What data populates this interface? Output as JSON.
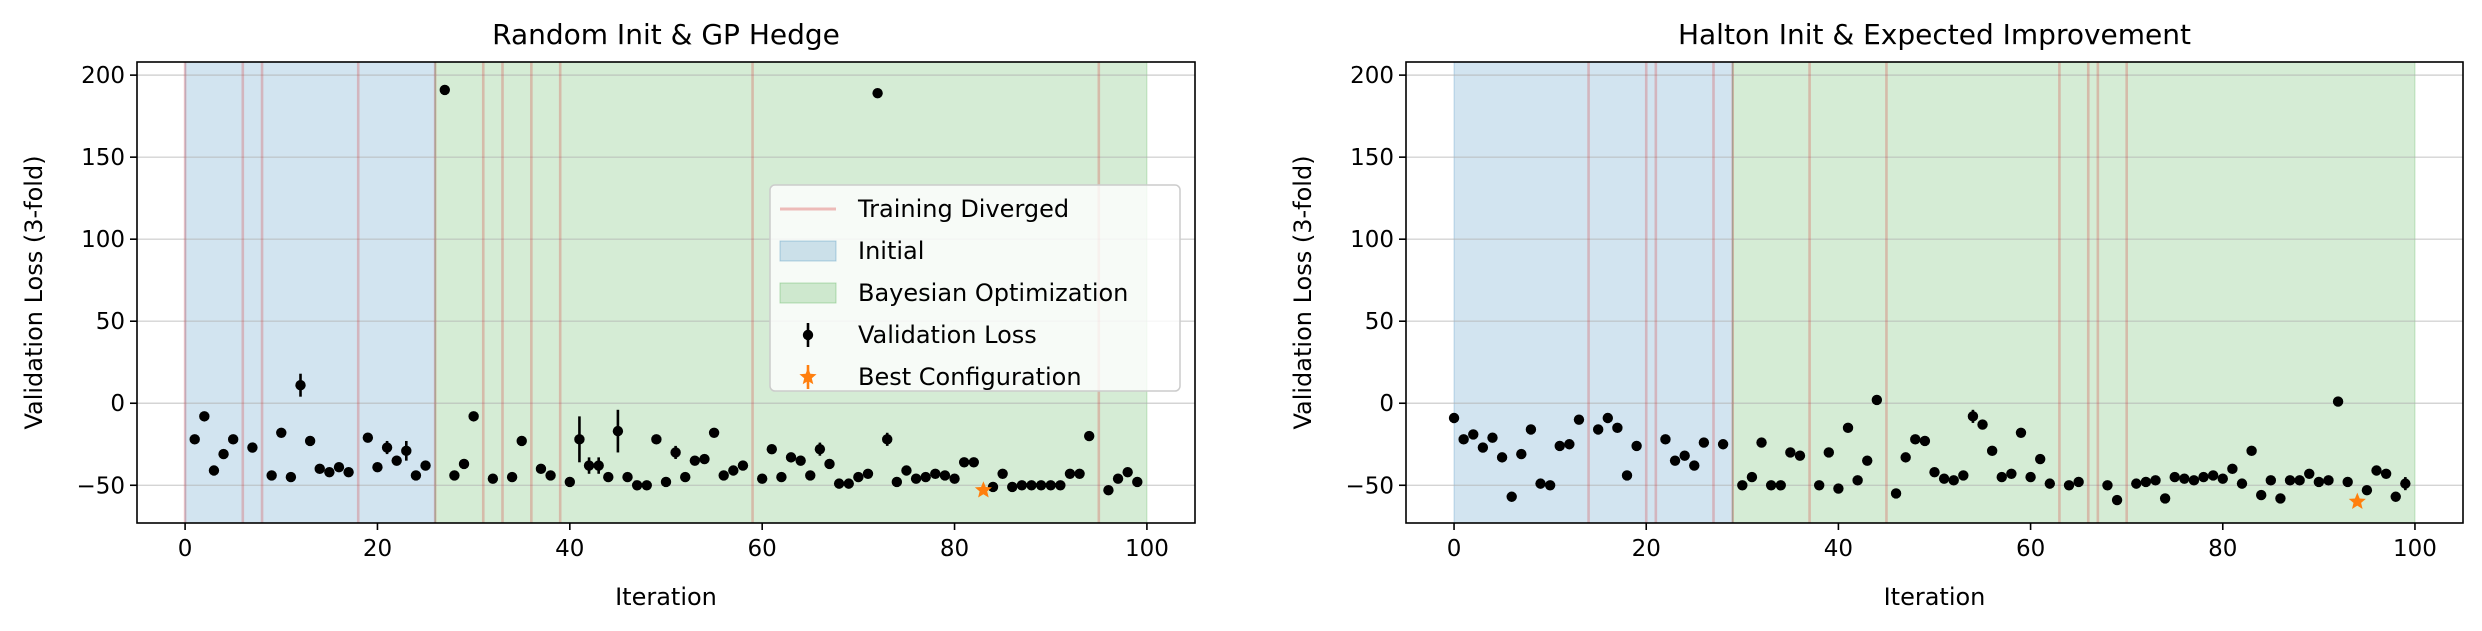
{
  "chart_data": [
    {
      "type": "scatter",
      "title": "Random Init & GP Hedge",
      "xlabel": "Iteration",
      "ylabel": "Validation Loss (3-fold)",
      "xlim": [
        -5,
        105
      ],
      "ylim": [
        -73,
        208
      ],
      "xticks": [
        0,
        20,
        40,
        60,
        80,
        100
      ],
      "yticks": [
        -50,
        0,
        50,
        100,
        150,
        200
      ],
      "grid": "horizontal",
      "legend_position": "center-right",
      "legend": [
        "Training Diverged",
        "Initial",
        "Bayesian Optimization",
        "Validation Loss",
        "Best Configuration"
      ],
      "initial_region": [
        0,
        26
      ],
      "bo_region": [
        26,
        100
      ],
      "diverged": [
        0,
        6,
        8,
        18,
        26,
        31,
        33,
        36,
        39,
        59,
        95
      ],
      "points": [
        [
          1,
          -22,
          0
        ],
        [
          2,
          -8,
          0
        ],
        [
          3,
          -41,
          0
        ],
        [
          4,
          -31,
          0
        ],
        [
          5,
          -22,
          0
        ],
        [
          7,
          -27,
          0
        ],
        [
          9,
          -44,
          0
        ],
        [
          10,
          -18,
          0
        ],
        [
          11,
          -45,
          0
        ],
        [
          12,
          11,
          7
        ],
        [
          13,
          -23,
          0
        ],
        [
          14,
          -40,
          0
        ],
        [
          15,
          -42,
          0
        ],
        [
          16,
          -39,
          0
        ],
        [
          17,
          -42,
          0
        ],
        [
          19,
          -21,
          0
        ],
        [
          20,
          -39,
          0
        ],
        [
          21,
          -27,
          4
        ],
        [
          22,
          -35,
          3
        ],
        [
          23,
          -29,
          6
        ],
        [
          24,
          -44,
          3
        ],
        [
          25,
          -38,
          0
        ],
        [
          27,
          191,
          2
        ],
        [
          28,
          -44,
          0
        ],
        [
          29,
          -37,
          3
        ],
        [
          30,
          -8,
          0
        ],
        [
          32,
          -46,
          0
        ],
        [
          34,
          -45,
          0
        ],
        [
          35,
          -23,
          0
        ],
        [
          37,
          -40,
          0
        ],
        [
          38,
          -44,
          0
        ],
        [
          40,
          -48,
          0
        ],
        [
          41,
          -22,
          14
        ],
        [
          42,
          -38,
          5
        ],
        [
          43,
          -38,
          5
        ],
        [
          44,
          -45,
          0
        ],
        [
          45,
          -17,
          13
        ],
        [
          46,
          -45,
          0
        ],
        [
          47,
          -50,
          0
        ],
        [
          48,
          -50,
          0
        ],
        [
          49,
          -22,
          0
        ],
        [
          50,
          -48,
          0
        ],
        [
          51,
          -30,
          4
        ],
        [
          52,
          -45,
          0
        ],
        [
          53,
          -35,
          0
        ],
        [
          54,
          -34,
          0
        ],
        [
          55,
          -18,
          0
        ],
        [
          56,
          -44,
          0
        ],
        [
          57,
          -41,
          0
        ],
        [
          58,
          -38,
          0
        ],
        [
          60,
          -46,
          0
        ],
        [
          61,
          -28,
          0
        ],
        [
          62,
          -45,
          0
        ],
        [
          63,
          -33,
          0
        ],
        [
          64,
          -35,
          3
        ],
        [
          65,
          -44,
          0
        ],
        [
          66,
          -28,
          4
        ],
        [
          67,
          -37,
          0
        ],
        [
          68,
          -49,
          0
        ],
        [
          69,
          -49,
          0
        ],
        [
          70,
          -45,
          0
        ],
        [
          71,
          -43,
          0
        ],
        [
          72,
          189,
          0
        ],
        [
          73,
          -22,
          4
        ],
        [
          74,
          -48,
          0
        ],
        [
          75,
          -41,
          0
        ],
        [
          76,
          -46,
          0
        ],
        [
          77,
          -45,
          0
        ],
        [
          78,
          -43,
          0
        ],
        [
          79,
          -44,
          0
        ],
        [
          80,
          -46,
          0
        ],
        [
          81,
          -36,
          0
        ],
        [
          82,
          -36,
          0
        ],
        [
          84,
          -51,
          0
        ],
        [
          85,
          -43,
          0
        ],
        [
          86,
          -51,
          0
        ],
        [
          87,
          -50,
          0
        ],
        [
          88,
          -50,
          0
        ],
        [
          89,
          -50,
          0
        ],
        [
          90,
          -50,
          0
        ],
        [
          91,
          -50,
          0
        ],
        [
          92,
          -43,
          0
        ],
        [
          93,
          -43,
          0
        ],
        [
          94,
          -20,
          0
        ],
        [
          96,
          -53,
          0
        ],
        [
          97,
          -46,
          0
        ],
        [
          98,
          -42,
          0
        ],
        [
          99,
          -48,
          0
        ]
      ],
      "best": [
        83,
        -53,
        2
      ]
    },
    {
      "type": "scatter",
      "title": "Halton Init & Expected Improvement",
      "xlabel": "Iteration",
      "ylabel": "Validation Loss (3-fold)",
      "xlim": [
        -5,
        105
      ],
      "ylim": [
        -73,
        208
      ],
      "xticks": [
        0,
        20,
        40,
        60,
        80,
        100
      ],
      "yticks": [
        -50,
        0,
        50,
        100,
        150,
        200
      ],
      "grid": "horizontal",
      "legend_position": "none",
      "legend": [],
      "initial_region": [
        0,
        29
      ],
      "bo_region": [
        29,
        100
      ],
      "diverged": [
        14,
        20,
        21,
        27,
        29,
        37,
        45,
        63,
        66,
        67,
        70
      ],
      "points": [
        [
          0,
          -9,
          0
        ],
        [
          1,
          -22,
          0
        ],
        [
          2,
          -19,
          0
        ],
        [
          3,
          -27,
          0
        ],
        [
          4,
          -21,
          0
        ],
        [
          5,
          -33,
          0
        ],
        [
          6,
          -57,
          0
        ],
        [
          7,
          -31,
          0
        ],
        [
          8,
          -16,
          0
        ],
        [
          9,
          -49,
          0
        ],
        [
          10,
          -50,
          0
        ],
        [
          11,
          -26,
          0
        ],
        [
          12,
          -25,
          0
        ],
        [
          13,
          -10,
          0
        ],
        [
          15,
          -16,
          0
        ],
        [
          16,
          -9,
          0
        ],
        [
          17,
          -15,
          0
        ],
        [
          18,
          -44,
          0
        ],
        [
          19,
          -26,
          0
        ],
        [
          22,
          -22,
          0
        ],
        [
          23,
          -35,
          0
        ],
        [
          24,
          -32,
          0
        ],
        [
          25,
          -38,
          0
        ],
        [
          26,
          -24,
          0
        ],
        [
          28,
          -25,
          0
        ],
        [
          30,
          -50,
          0
        ],
        [
          31,
          -45,
          0
        ],
        [
          32,
          -24,
          0
        ],
        [
          33,
          -50,
          0
        ],
        [
          34,
          -50,
          0
        ],
        [
          35,
          -30,
          0
        ],
        [
          36,
          -32,
          0
        ],
        [
          38,
          -50,
          0
        ],
        [
          39,
          -30,
          0
        ],
        [
          40,
          -52,
          0
        ],
        [
          41,
          -15,
          0
        ],
        [
          42,
          -47,
          0
        ],
        [
          43,
          -35,
          0
        ],
        [
          44,
          2,
          0
        ],
        [
          46,
          -55,
          0
        ],
        [
          47,
          -33,
          0
        ],
        [
          48,
          -22,
          0
        ],
        [
          49,
          -23,
          0
        ],
        [
          50,
          -42,
          0
        ],
        [
          51,
          -46,
          0
        ],
        [
          52,
          -47,
          0
        ],
        [
          53,
          -44,
          0
        ],
        [
          54,
          -8,
          4
        ],
        [
          55,
          -13,
          0
        ],
        [
          56,
          -29,
          0
        ],
        [
          57,
          -45,
          0
        ],
        [
          58,
          -43,
          0
        ],
        [
          59,
          -18,
          0
        ],
        [
          60,
          -45,
          0
        ],
        [
          61,
          -34,
          0
        ],
        [
          62,
          -49,
          0
        ],
        [
          64,
          -50,
          0
        ],
        [
          65,
          -48,
          0
        ],
        [
          68,
          -50,
          0
        ],
        [
          69,
          -59,
          0
        ],
        [
          71,
          -49,
          0
        ],
        [
          72,
          -48,
          0
        ],
        [
          73,
          -47,
          0
        ],
        [
          74,
          -58,
          0
        ],
        [
          75,
          -45,
          0
        ],
        [
          76,
          -46,
          0
        ],
        [
          77,
          -47,
          0
        ],
        [
          78,
          -45,
          0
        ],
        [
          79,
          -44,
          0
        ],
        [
          80,
          -46,
          0
        ],
        [
          81,
          -40,
          0
        ],
        [
          82,
          -49,
          0
        ],
        [
          83,
          -29,
          0
        ],
        [
          84,
          -56,
          0
        ],
        [
          85,
          -47,
          0
        ],
        [
          86,
          -58,
          0
        ],
        [
          87,
          -47,
          0
        ],
        [
          88,
          -47,
          0
        ],
        [
          89,
          -43,
          0
        ],
        [
          90,
          -48,
          0
        ],
        [
          91,
          -47,
          0
        ],
        [
          92,
          1,
          0
        ],
        [
          93,
          -48,
          0
        ],
        [
          95,
          -53,
          0
        ],
        [
          96,
          -41,
          0
        ],
        [
          97,
          -43,
          0
        ],
        [
          98,
          -57,
          0
        ],
        [
          99,
          -49,
          4
        ]
      ],
      "best": [
        94,
        -60,
        2
      ]
    }
  ],
  "colors": {
    "initial": "#1f77b4",
    "bo": "#2ca02c",
    "diverged": "#d62728",
    "point": "#000000",
    "best": "#ff7f0e",
    "grid": "#b0b0b0"
  }
}
